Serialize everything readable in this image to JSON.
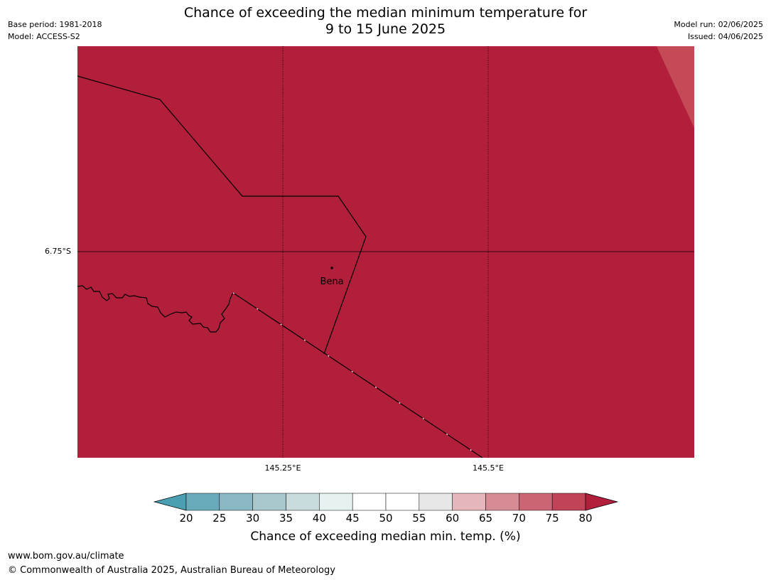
{
  "header": {
    "base_period": "Base period: 1981-2018",
    "model": "Model: ACCESS-S2",
    "model_run": "Model run: 02/06/2025",
    "issued": "Issued: 04/06/2025",
    "title_line1": "Chance of exceeding the median minimum temperature for",
    "title_line2": "9 to 15 June 2025"
  },
  "map": {
    "fill_color": "#b21f3a",
    "corner_color": "#c44a58",
    "border_color": "#000000",
    "place": {
      "name": "Bena"
    },
    "latitude_ticks": [
      {
        "label": "6.75°S"
      }
    ],
    "longitude_ticks": [
      {
        "label": "145.25°E"
      },
      {
        "label": "145.5°E"
      }
    ]
  },
  "legend": {
    "title": "Chance of exceeding median min. temp. (%)",
    "ticks": [
      "20",
      "25",
      "30",
      "35",
      "40",
      "45",
      "50",
      "55",
      "60",
      "65",
      "70",
      "75",
      "80"
    ],
    "colors": [
      "#4aa0b2",
      "#6aabbb",
      "#8ab8c5",
      "#a8c7cd",
      "#c9dbdd",
      "#e8f1f2",
      "#ffffff",
      "#ffffff",
      "#e7e7e7",
      "#e5b7bc",
      "#d78c95",
      "#cb6574",
      "#c04357",
      "#b21f3a"
    ]
  },
  "footer": {
    "url": "www.bom.gov.au/climate",
    "copyright": "© Commonwealth of Australia 2025, Australian Bureau of Meteorology"
  }
}
